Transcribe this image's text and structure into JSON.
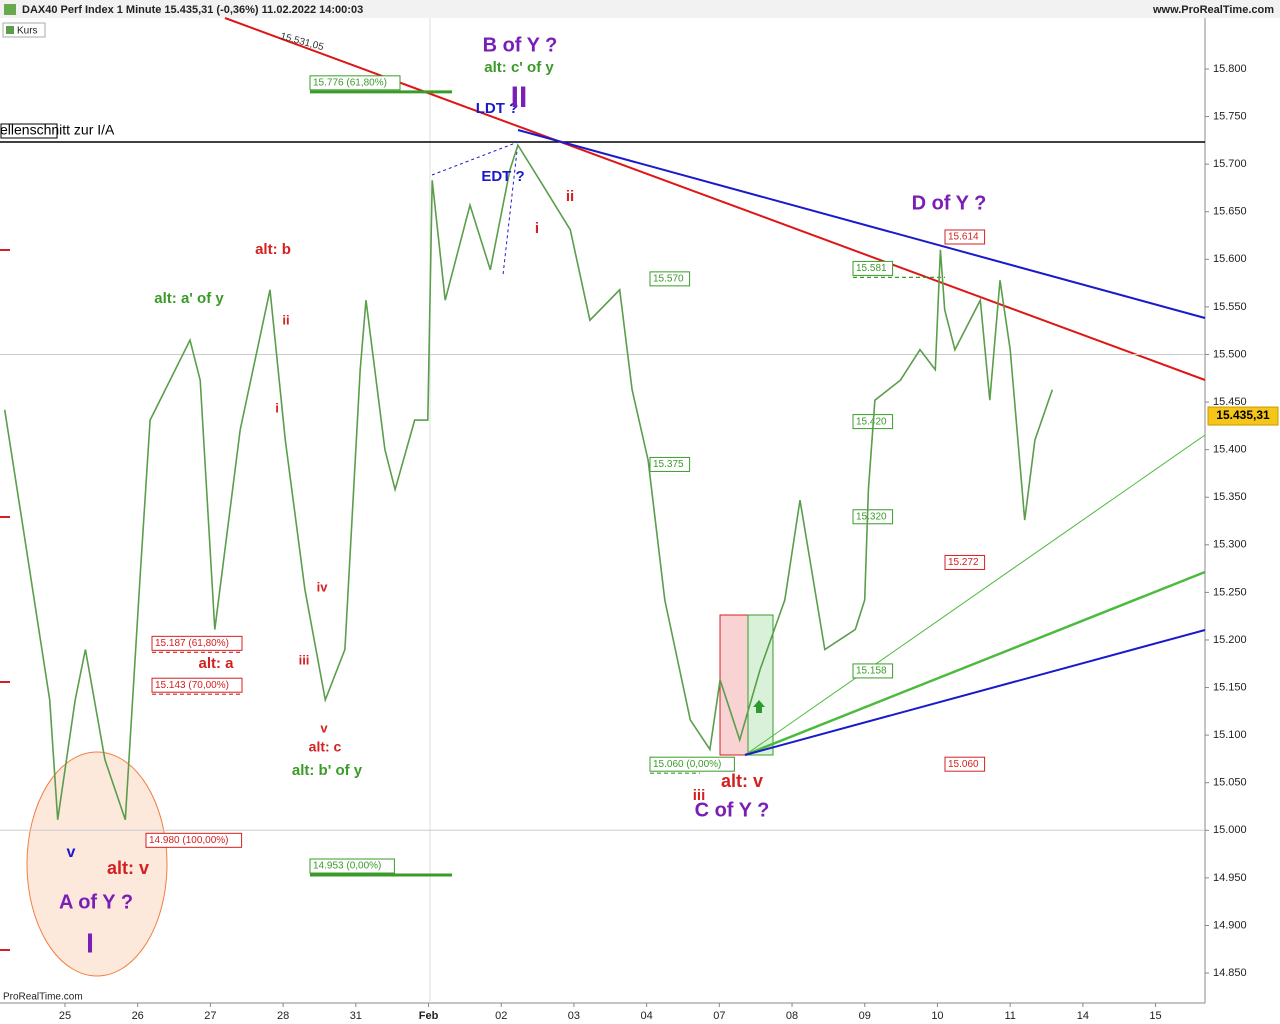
{
  "chart_data": {
    "type": "line",
    "title": "DAX40 Perf Index 1 Minute 15.435,31 (-0,36%) 11.02.2022 14:00:03",
    "source": "www.ProRealTime.com",
    "footer": "ProRealTime.com",
    "series": [
      {
        "name": "Kurs",
        "color": "#5a9e4b",
        "x": [
          -0.83,
          -0.55,
          -0.21,
          -0.1,
          0.14,
          0.28,
          0.55,
          0.83,
          1.03,
          1.17,
          1.72,
          1.86,
          2.06,
          2.41,
          2.82,
          3.03,
          3.3,
          3.58,
          3.85,
          4.06,
          4.14,
          4.4,
          4.54,
          4.81,
          4.99,
          5.05,
          5.23,
          5.57,
          5.85,
          6.12,
          6.23,
          6.53,
          6.95,
          7.22,
          7.63,
          7.8,
          8.02,
          8.25,
          8.6,
          8.87,
          9.01,
          9.28,
          9.56,
          9.9,
          10.11,
          10.45,
          10.87,
          11.0,
          11.05,
          11.14,
          11.49,
          11.76,
          11.97,
          12.04,
          12.1,
          12.24,
          12.59,
          12.72,
          12.86,
          13.0,
          13.2,
          13.34,
          13.58
        ],
        "values": [
          15.442,
          15.305,
          15.137,
          15.011,
          15.137,
          15.19,
          15.074,
          15.011,
          15.263,
          15.431,
          15.515,
          15.473,
          15.211,
          15.421,
          15.568,
          15.41,
          15.253,
          15.137,
          15.19,
          15.484,
          15.557,
          15.4,
          15.358,
          15.431,
          15.431,
          15.683,
          15.557,
          15.657,
          15.589,
          15.694,
          15.72,
          15.683,
          15.631,
          15.536,
          15.568,
          15.463,
          15.389,
          15.242,
          15.116,
          15.085,
          15.158,
          15.095,
          15.169,
          15.242,
          15.347,
          15.19,
          15.211,
          15.242,
          15.358,
          15.452,
          15.473,
          15.505,
          15.484,
          15.61,
          15.547,
          15.505,
          15.557,
          15.452,
          15.578,
          15.505,
          15.326,
          15.41,
          15.463
        ]
      }
    ],
    "xlim": [
      -0.894,
      15.68
    ],
    "xticks": [
      {
        "value": 0,
        "label": "25"
      },
      {
        "value": 1,
        "label": "26"
      },
      {
        "value": 2,
        "label": "27"
      },
      {
        "value": 3,
        "label": "28"
      },
      {
        "value": 4,
        "label": "31"
      },
      {
        "value": 5,
        "label": "Feb"
      },
      {
        "value": 6,
        "label": "02"
      },
      {
        "value": 7,
        "label": "03"
      },
      {
        "value": 8,
        "label": "04"
      },
      {
        "value": 9,
        "label": "07"
      },
      {
        "value": 10,
        "label": "08"
      },
      {
        "value": 11,
        "label": "09"
      },
      {
        "value": 12,
        "label": "10"
      },
      {
        "value": 13,
        "label": "11"
      },
      {
        "value": 14,
        "label": "14"
      },
      {
        "value": 15,
        "label": "15"
      }
    ],
    "ylim": [
      14.8185,
      15.8536
    ],
    "yticks": [
      {
        "value": 15.8,
        "label": "15.800"
      },
      {
        "value": 15.75,
        "label": "15.750"
      },
      {
        "value": 15.7,
        "label": "15.700"
      },
      {
        "value": 15.65,
        "label": "15.650"
      },
      {
        "value": 15.6,
        "label": "15.600"
      },
      {
        "value": 15.55,
        "label": "15.550"
      },
      {
        "value": 15.5,
        "label": "15.500"
      },
      {
        "value": 15.45,
        "label": "15.450"
      },
      {
        "value": 15.4,
        "label": "15.400"
      },
      {
        "value": 15.35,
        "label": "15.350"
      },
      {
        "value": 15.3,
        "label": "15.300"
      },
      {
        "value": 15.25,
        "label": "15.250"
      },
      {
        "value": 15.2,
        "label": "15.200"
      },
      {
        "value": 15.15,
        "label": "15.150"
      },
      {
        "value": 15.1,
        "label": "15.100"
      },
      {
        "value": 15.05,
        "label": "15.050"
      },
      {
        "value": 15.0,
        "label": "15.000"
      },
      {
        "value": 14.95,
        "label": "14.950"
      },
      {
        "value": 14.9,
        "label": "14.900"
      },
      {
        "value": 14.85,
        "label": "14.850"
      }
    ],
    "last": {
      "value": 15.43531,
      "label": "15.435,31"
    },
    "levels": [
      {
        "value": 15.776,
        "label": "15.776 (61,80%)",
        "color": "#3a9b2a"
      },
      {
        "value": 14.953,
        "label": "14.953 (0,00%)",
        "color": "#3a9b2a"
      },
      {
        "value": 15.57,
        "label": "15.570",
        "color": "#3a9b2a"
      },
      {
        "value": 15.581,
        "label": "15.581",
        "color": "#3a9b2a"
      },
      {
        "value": 15.42,
        "label": "15.420",
        "color": "#3a9b2a"
      },
      {
        "value": 15.375,
        "label": "15.375",
        "color": "#3a9b2a"
      },
      {
        "value": 15.32,
        "label": "15.320",
        "color": "#3a9b2a"
      },
      {
        "value": 15.158,
        "label": "15.158",
        "color": "#3a9b2a"
      },
      {
        "value": 15.06,
        "label": "15.060 (0,00%)",
        "color": "#3a9b2a"
      },
      {
        "value": 15.187,
        "label": "15.187 (61,80%)",
        "color": "#d42020"
      },
      {
        "value": 15.143,
        "label": "15.143 (70,00%)",
        "color": "#d42020"
      },
      {
        "value": 14.98,
        "label": "14.980 (100,00%)",
        "color": "#d42020"
      },
      {
        "value": 15.614,
        "label": "15.614",
        "color": "#d42020"
      },
      {
        "value": 15.272,
        "label": "15.272",
        "color": "#d42020"
      },
      {
        "value": 15.06,
        "label": "15.060",
        "color": "#d42020"
      }
    ],
    "annotations": [
      {
        "text": "B of Y ?",
        "color": "#7a1fb5"
      },
      {
        "text": "alt: c' of y",
        "color": "#3a9b2a"
      },
      {
        "text": "LDT ?",
        "color": "#1a1acc"
      },
      {
        "text": "II",
        "color": "#7a1fb5"
      },
      {
        "text": "EDT ?",
        "color": "#1a1acc"
      },
      {
        "text": "i",
        "color": "#d42020"
      },
      {
        "text": "ii",
        "color": "#d42020"
      },
      {
        "text": "15.531,05",
        "color": "#333333"
      },
      {
        "text": "D of Y ?",
        "color": "#7a1fb5"
      },
      {
        "text": "alt: b",
        "color": "#d42020"
      },
      {
        "text": "alt: a' of y",
        "color": "#3a9b2a"
      },
      {
        "text": "ii",
        "color": "#d42020"
      },
      {
        "text": "i",
        "color": "#d42020"
      },
      {
        "text": "iv",
        "color": "#d42020"
      },
      {
        "text": "iii",
        "color": "#d42020"
      },
      {
        "text": "v",
        "color": "#d42020"
      },
      {
        "text": "alt: c",
        "color": "#d42020"
      },
      {
        "text": "alt: b' of y",
        "color": "#3a9b2a"
      },
      {
        "text": "alt: a",
        "color": "#d42020"
      },
      {
        "text": "v",
        "color": "#1a1acc"
      },
      {
        "text": "alt: v",
        "color": "#d42020"
      },
      {
        "text": "A of Y ?",
        "color": "#7a1fb5"
      },
      {
        "text": "I",
        "color": "#7a1fb5"
      },
      {
        "text": "iii",
        "color": "#d42020"
      },
      {
        "text": "alt: v",
        "color": "#d42020"
      },
      {
        "text": "C of Y ?",
        "color": "#7a1fb5"
      },
      {
        "text": "ellenschnitt zur I/A",
        "color": "#000000"
      }
    ]
  }
}
